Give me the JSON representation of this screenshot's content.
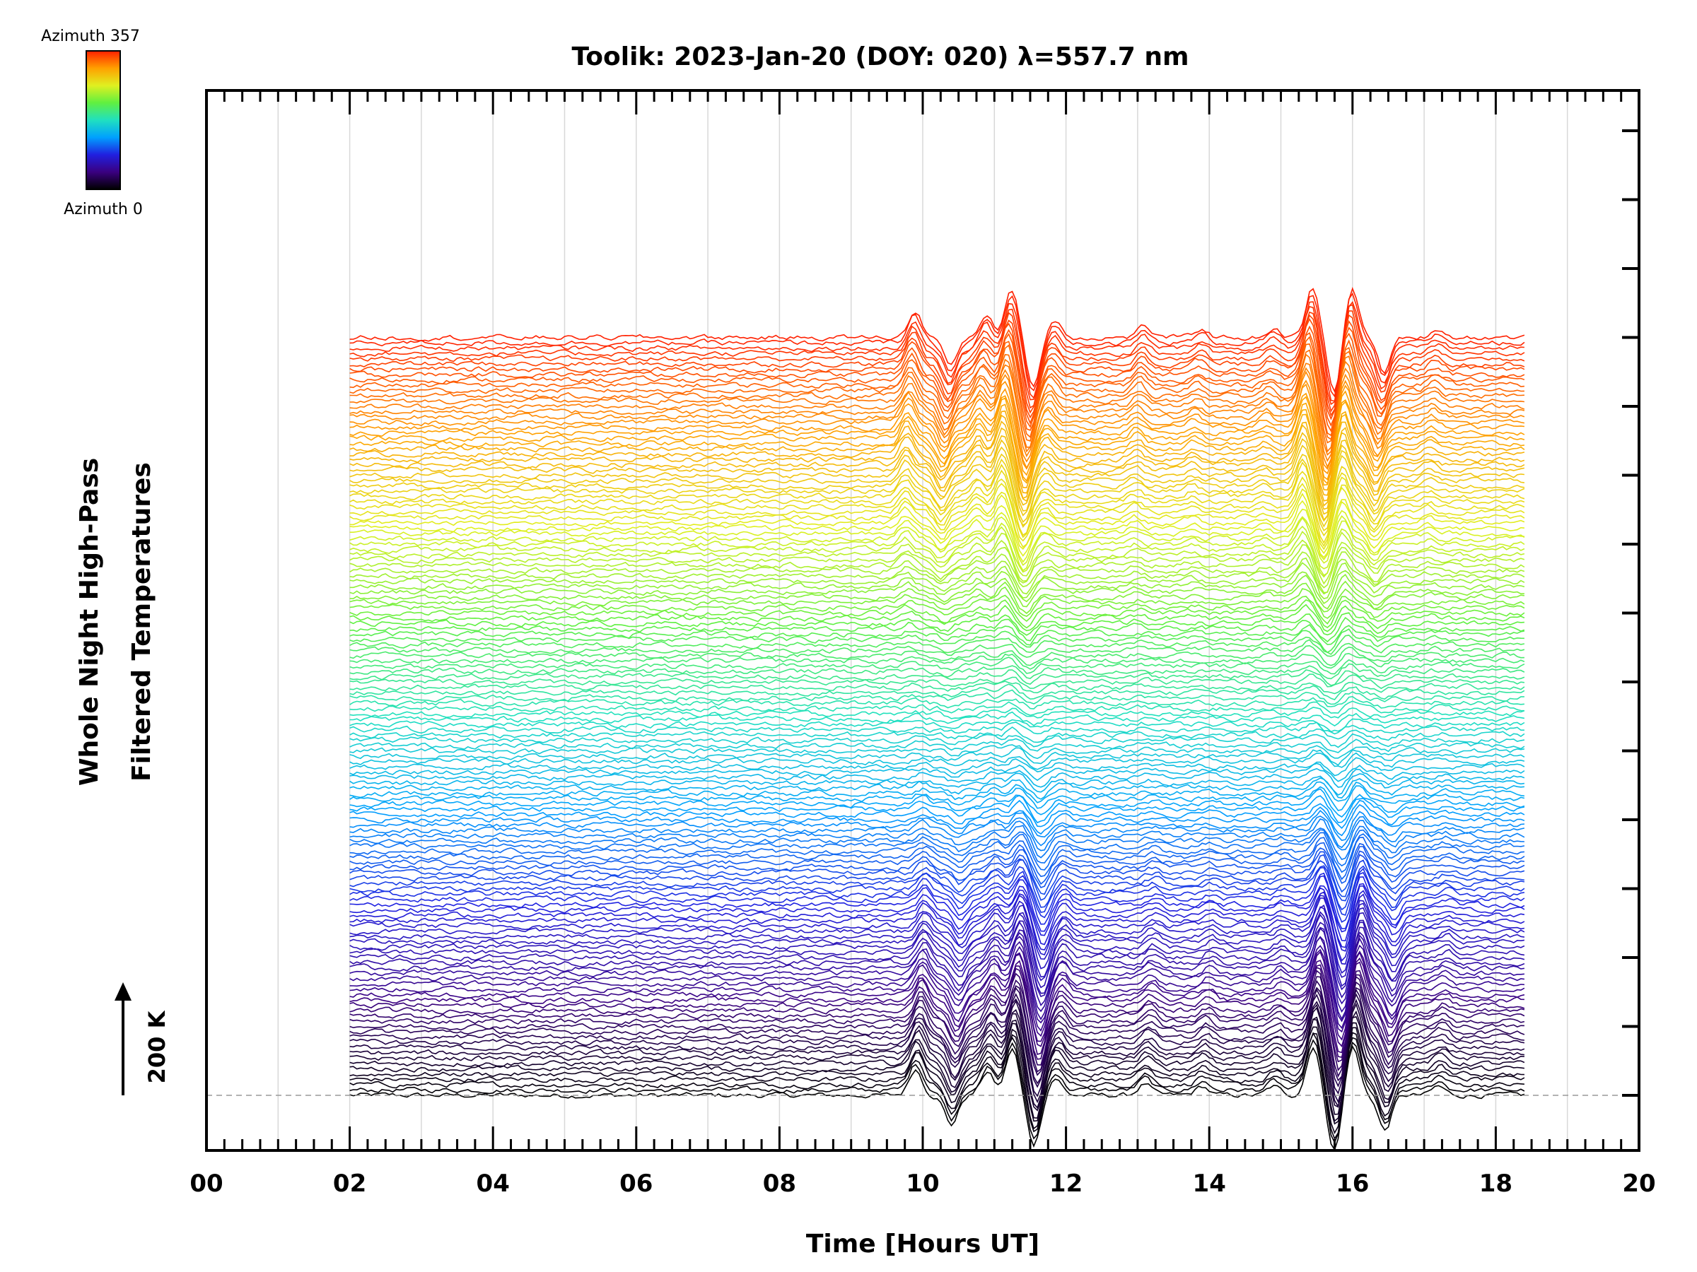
{
  "chart_data": {
    "type": "line",
    "title": "Toolik: 2023-Jan-20 (DOY: 020) λ=557.7 nm",
    "xlabel": "Time [Hours UT]",
    "ylabel_line1": "Whole Night High-Pass",
    "ylabel_line2": "Filtered Temperatures",
    "xlim": [
      0,
      20
    ],
    "x_ticks": [
      0,
      2,
      4,
      6,
      8,
      10,
      12,
      14,
      16,
      18,
      20
    ],
    "x_tick_labels": [
      "00",
      "02",
      "04",
      "06",
      "08",
      "10",
      "12",
      "14",
      "16",
      "18",
      "20"
    ],
    "scale_bar": {
      "label": "200 K",
      "value_K": 200
    },
    "colorbar": {
      "top_label": "Azimuth 357",
      "bottom_label": "Azimuth 0",
      "min": 0,
      "max": 357,
      "colors": [
        "#000000",
        "#3a0080",
        "#2020e0",
        "#00a0ff",
        "#20e0c0",
        "#60f040",
        "#e0f020",
        "#ffa000",
        "#ff2000"
      ]
    },
    "data_time_range": [
      2.0,
      18.4
    ],
    "series_count": 144,
    "series_offset_K": 100,
    "azimuth_step_deg": 2.5,
    "grid": "vertical-lines",
    "features": [
      {
        "time": 9.9,
        "amplitude_K": 90
      },
      {
        "time": 10.4,
        "amplitude_K": -100
      },
      {
        "time": 10.9,
        "amplitude_K": 80
      },
      {
        "time": 11.25,
        "amplitude_K": 160
      },
      {
        "time": 11.55,
        "amplitude_K": -170
      },
      {
        "time": 11.85,
        "amplitude_K": 60
      },
      {
        "time": 13.1,
        "amplitude_K": 40
      },
      {
        "time": 13.9,
        "amplitude_K": 30
      },
      {
        "time": 14.9,
        "amplitude_K": 30
      },
      {
        "time": 15.45,
        "amplitude_K": 170
      },
      {
        "time": 15.75,
        "amplitude_K": -190
      },
      {
        "time": 16.0,
        "amplitude_K": 170
      },
      {
        "time": 16.45,
        "amplitude_K": -120
      },
      {
        "time": 17.2,
        "amplitude_K": 30
      }
    ]
  }
}
